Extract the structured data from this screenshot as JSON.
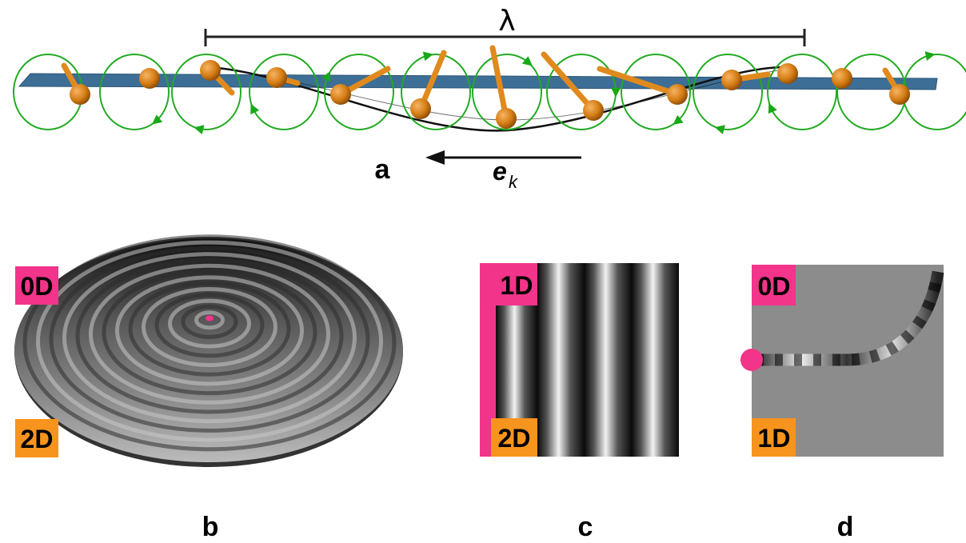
{
  "panel_a": {
    "label": "a",
    "wavelength_symbol": "λ",
    "direction_vector": "e",
    "direction_subscript": "k"
  },
  "panel_b": {
    "label": "b",
    "tag_top": "0D",
    "tag_bottom": "2D"
  },
  "panel_c": {
    "label": "c",
    "tag_top": "1D",
    "tag_bottom": "2D"
  },
  "panel_d": {
    "label": "d",
    "tag_top": "0D",
    "tag_bottom": "1D"
  },
  "colors": {
    "magenta_tag": "#f2348a",
    "orange_tag": "#f7941d",
    "spin_orange": "#e08a1e",
    "precession_green": "#22aa22",
    "plane_blue": "#3d6e96",
    "gray_background": "#8c8c8c"
  },
  "icons": {
    "spin": "cone-arrow-icon",
    "precession": "circular-arrow-icon"
  }
}
